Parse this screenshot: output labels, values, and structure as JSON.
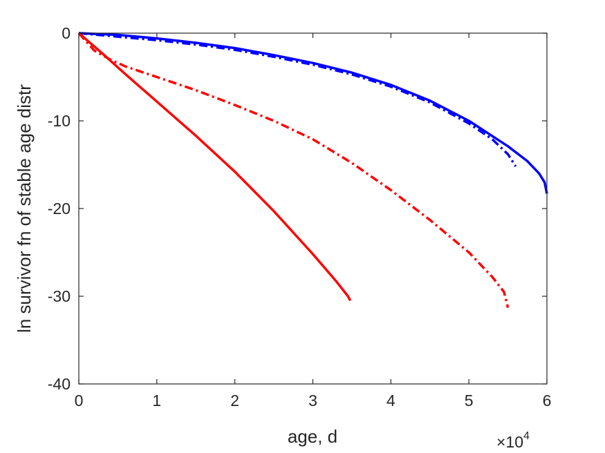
{
  "chart_data": {
    "type": "line",
    "title": "",
    "xlabel": "age, d",
    "ylabel": "ln survivor fn of stable age distr",
    "x_multiplier": "×10",
    "x_multiplier_exp": "4",
    "xlim": [
      0,
      6
    ],
    "ylim": [
      -40,
      0
    ],
    "xticks": [
      "0",
      "1",
      "2",
      "3",
      "4",
      "5",
      "6"
    ],
    "yticks": [
      "0",
      "-10",
      "-20",
      "-30",
      "-40"
    ],
    "grid": false,
    "legend": "none",
    "series": [
      {
        "color": "#0000ff",
        "style": "solid",
        "points": [
          [
            0,
            0
          ],
          [
            0.5,
            -0.2
          ],
          [
            1.0,
            -0.6
          ],
          [
            1.5,
            -1.1
          ],
          [
            2.0,
            -1.7
          ],
          [
            2.5,
            -2.5
          ],
          [
            3.0,
            -3.4
          ],
          [
            3.5,
            -4.5
          ],
          [
            4.0,
            -5.9
          ],
          [
            4.5,
            -7.7
          ],
          [
            5.0,
            -10.0
          ],
          [
            5.5,
            -12.9
          ],
          [
            5.75,
            -14.6
          ],
          [
            5.9,
            -16.0
          ],
          [
            5.97,
            -17.0
          ],
          [
            6.0,
            -18.3
          ]
        ]
      },
      {
        "color": "#0000ff",
        "style": "dashdot",
        "points": [
          [
            0,
            0
          ],
          [
            0.5,
            -0.4
          ],
          [
            1.0,
            -0.8
          ],
          [
            1.5,
            -1.3
          ],
          [
            2.0,
            -1.9
          ],
          [
            2.5,
            -2.7
          ],
          [
            3.0,
            -3.6
          ],
          [
            3.5,
            -4.7
          ],
          [
            4.0,
            -6.1
          ],
          [
            4.5,
            -7.9
          ],
          [
            5.0,
            -10.3
          ],
          [
            5.3,
            -12.1
          ],
          [
            5.5,
            -13.8
          ],
          [
            5.6,
            -15.2
          ]
        ]
      },
      {
        "color": "#ff0000",
        "style": "solid",
        "points": [
          [
            0,
            0
          ],
          [
            0.3,
            -2.3
          ],
          [
            0.6,
            -4.7
          ],
          [
            1.0,
            -7.8
          ],
          [
            1.5,
            -11.7
          ],
          [
            2.0,
            -15.8
          ],
          [
            2.5,
            -20.3
          ],
          [
            3.0,
            -25.2
          ],
          [
            3.3,
            -28.3
          ],
          [
            3.45,
            -30.0
          ],
          [
            3.48,
            -30.5
          ]
        ]
      },
      {
        "color": "#ff0000",
        "style": "dashdot",
        "points": [
          [
            0,
            0
          ],
          [
            0.2,
            -2.0
          ],
          [
            0.4,
            -3.0
          ],
          [
            0.6,
            -3.8
          ],
          [
            1.0,
            -5.0
          ],
          [
            1.5,
            -6.5
          ],
          [
            2.0,
            -8.2
          ],
          [
            2.5,
            -10.0
          ],
          [
            3.0,
            -12.1
          ],
          [
            3.5,
            -14.8
          ],
          [
            4.0,
            -17.9
          ],
          [
            4.5,
            -21.3
          ],
          [
            5.0,
            -25.0
          ],
          [
            5.3,
            -27.8
          ],
          [
            5.45,
            -29.5
          ],
          [
            5.5,
            -31.3
          ]
        ]
      }
    ]
  }
}
